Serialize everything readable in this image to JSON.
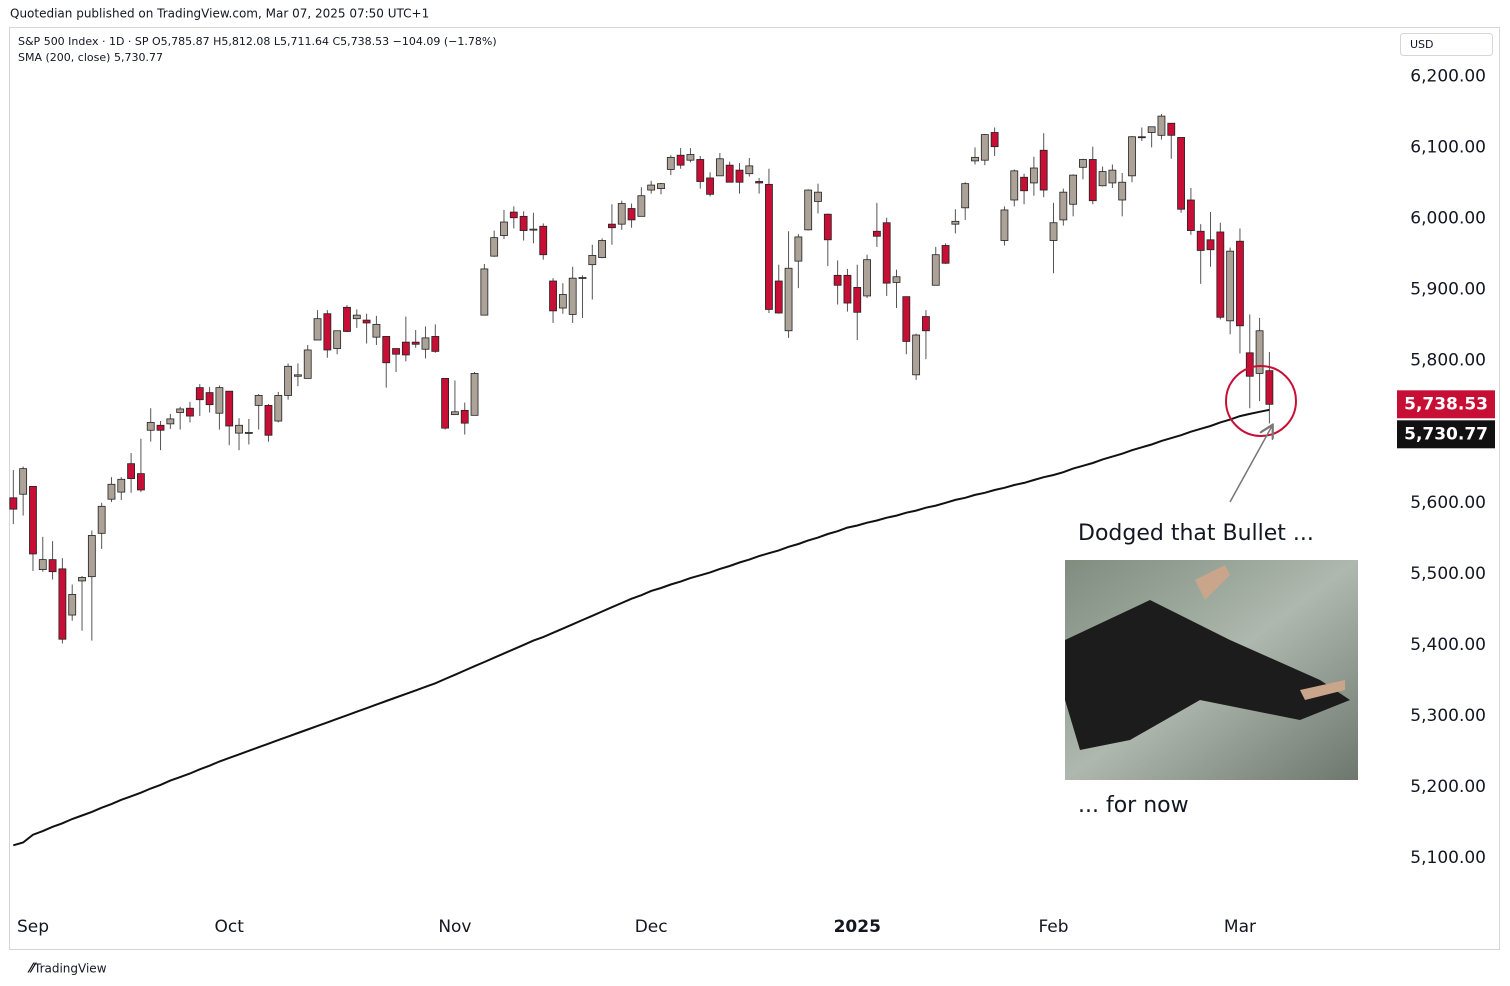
{
  "header": "Quotedian published on TradingView.com, Mar 07, 2025 07:50 UTC+1",
  "footer": "TradingView",
  "chart_data": {
    "type": "candlestick",
    "title": "S&P 500 Index · 1D · SP",
    "ohlc_line": "O5,785.87  H5,812.08  L5,711.64  C5,738.53  −104.09 (−1.78%)",
    "currency": "USD",
    "up_color": "#aca298",
    "down_color": "#c70f35",
    "open": [
      5607,
      5612,
      5623,
      5506,
      5520,
      5507,
      5442,
      5490,
      5496,
      5557,
      5605,
      5615,
      5655,
      5641,
      5702,
      5709,
      5711,
      5727,
      5733,
      5762,
      5755,
      5726,
      5757,
      5698,
      5698,
      5737,
      5737,
      5715,
      5751,
      5778,
      5775,
      5829,
      5866,
      5817,
      5875,
      5859,
      5857,
      5833,
      5834,
      5817,
      5826,
      5826,
      5816,
      5834,
      5775,
      5724,
      5730,
      5723,
      5864,
      5947,
      5976,
      6009,
      6003,
      5985,
      5989,
      5912,
      5874,
      5865,
      5917,
      5935,
      5945,
      5992,
      5992,
      6014,
      6003,
      6040,
      6042,
      6069,
      6089,
      6082,
      6083,
      6057,
      6060,
      6075,
      6068,
      6063,
      6052,
      6048,
      5912,
      5842,
      5940,
      5984,
      6024,
      6006,
      5920,
      5920,
      5903,
      5891,
      5982,
      5994,
      5910,
      5890,
      5780,
      5862,
      5906,
      5962,
      5992,
      6015,
      6081,
      6082,
      6121,
      5969,
      6026,
      6058,
      6050,
      6096,
      5969,
      5998,
      6020,
      6072,
      6083,
      6046,
      6050,
      6026,
      6060,
      6115,
      6121,
      6117,
      6134,
      6114,
      6026,
      5982,
      5970,
      5981,
      5856,
      5968,
      5811,
      5782,
      5785.87
    ],
    "high": [
      5646,
      5651,
      5623,
      5552,
      5546,
      5522,
      5485,
      5497,
      5561,
      5600,
      5636,
      5636,
      5670,
      5690,
      5733,
      5715,
      5725,
      5735,
      5742,
      5767,
      5763,
      5765,
      5757,
      5719,
      5718,
      5753,
      5739,
      5756,
      5796,
      5796,
      5822,
      5871,
      5871,
      5842,
      5878,
      5872,
      5866,
      5863,
      5834,
      5817,
      5862,
      5843,
      5848,
      5851,
      5775,
      5772,
      5741,
      5784,
      5936,
      5983,
      6012,
      6017,
      6010,
      6008,
      5993,
      5916,
      5909,
      5932,
      5920,
      5963,
      5972,
      6020,
      6025,
      6021,
      6044,
      6053,
      6050,
      6089,
      6099,
      6099,
      6088,
      6065,
      6092,
      6080,
      6078,
      6085,
      6057,
      6070,
      5935,
      5982,
      5978,
      6041,
      6049,
      6007,
      5941,
      5929,
      5935,
      5949,
      6022,
      6001,
      5928,
      5890,
      5838,
      5871,
      5960,
      5965,
      6013,
      6051,
      6100,
      6119,
      6128,
      6017,
      6069,
      6063,
      6087,
      6120,
      6022,
      6042,
      6062,
      6084,
      6101,
      6073,
      6076,
      6064,
      6116,
      6128,
      6129,
      6147,
      6134,
      6114,
      6043,
      5992,
      6009,
      5994,
      5959,
      5986,
      5865,
      5860,
      5812.08
    ],
    "low": [
      5570,
      5582,
      5504,
      5503,
      5492,
      5402,
      5434,
      5420,
      5406,
      5535,
      5601,
      5604,
      5614,
      5615,
      5686,
      5674,
      5704,
      5703,
      5713,
      5722,
      5727,
      5703,
      5681,
      5674,
      5682,
      5703,
      5686,
      5713,
      5745,
      5764,
      5775,
      5829,
      5804,
      5809,
      5840,
      5846,
      5824,
      5822,
      5762,
      5784,
      5799,
      5818,
      5803,
      5811,
      5703,
      5724,
      5696,
      5723,
      5864,
      5946,
      5971,
      5986,
      5969,
      5965,
      5942,
      5853,
      5866,
      5853,
      5860,
      5886,
      5944,
      5963,
      5984,
      5987,
      6003,
      6035,
      6034,
      6061,
      6070,
      6079,
      6042,
      6031,
      6060,
      6051,
      6035,
      6059,
      6035,
      5867,
      5866,
      5832,
      5902,
      5983,
      6007,
      5933,
      5879,
      5869,
      5829,
      5888,
      5960,
      5891,
      5874,
      5809,
      5773,
      5802,
      5906,
      5936,
      5979,
      5998,
      6076,
      6075,
      6088,
      5962,
      6017,
      6020,
      6032,
      6030,
      5923,
      5990,
      6003,
      6055,
      6020,
      6045,
      6043,
      6003,
      6051,
      6109,
      6100,
      6111,
      6084,
      6008,
      5977,
      5908,
      5932,
      5858,
      5837,
      5810,
      5733,
      5743,
      5711.64
    ],
    "close": [
      5591,
      5648,
      5528,
      5520,
      5503,
      5408,
      5471,
      5495,
      5554,
      5595,
      5626,
      5633,
      5634,
      5618,
      5713,
      5702,
      5718,
      5732,
      5722,
      5745,
      5738,
      5762,
      5708,
      5709,
      5699,
      5751,
      5695,
      5751,
      5792,
      5780,
      5815,
      5859,
      5815,
      5842,
      5841,
      5864,
      5853,
      5851,
      5797,
      5809,
      5808,
      5823,
      5832,
      5813,
      5705,
      5728,
      5712,
      5782,
      5929,
      5973,
      5995,
      6001,
      5983,
      5985,
      5949,
      5870,
      5893,
      5916,
      5917,
      5948,
      5969,
      5987,
      6021,
      5998,
      6032,
      6047,
      6049,
      6086,
      6075,
      6090,
      6052,
      6034,
      6084,
      6051,
      6051,
      6074,
      6050,
      5872,
      5867,
      5930,
      5974,
      6040,
      6037,
      5970,
      5906,
      5881,
      5868,
      5942,
      5975,
      5909,
      5918,
      5827,
      5836,
      5842,
      5949,
      5937,
      5996,
      6049,
      6086,
      6118,
      6101,
      6012,
      6067,
      6039,
      6071,
      6040,
      5994,
      6037,
      6061,
      6083,
      6025,
      6066,
      6068,
      6051,
      6115,
      6114,
      6129,
      6144,
      6117,
      6013,
      5983,
      5955,
      5956,
      5861,
      5954,
      5849,
      5778,
      5842,
      5738.53
    ],
    "close_label": "5,738.53",
    "series": [
      {
        "name": "SMA (200, close)",
        "color": "#111111",
        "value_label": "5,730.77",
        "values": [
          5118,
          5122,
          5133,
          5138,
          5144,
          5149,
          5155,
          5160,
          5165,
          5171,
          5176,
          5182,
          5187,
          5192,
          5198,
          5203,
          5209,
          5214,
          5219,
          5225,
          5230,
          5236,
          5241,
          5246,
          5251,
          5256,
          5261,
          5266,
          5271,
          5276,
          5281,
          5286,
          5291,
          5296,
          5301,
          5306,
          5311,
          5316,
          5321,
          5326,
          5331,
          5336,
          5341,
          5346,
          5352,
          5358,
          5364,
          5370,
          5376,
          5382,
          5388,
          5394,
          5400,
          5406,
          5411,
          5417,
          5423,
          5429,
          5435,
          5441,
          5447,
          5453,
          5459,
          5465,
          5470,
          5476,
          5480,
          5485,
          5489,
          5494,
          5498,
          5502,
          5507,
          5511,
          5516,
          5520,
          5525,
          5529,
          5533,
          5538,
          5542,
          5547,
          5551,
          5556,
          5560,
          5565,
          5568,
          5572,
          5575,
          5579,
          5582,
          5586,
          5589,
          5593,
          5596,
          5600,
          5604,
          5607,
          5611,
          5614,
          5618,
          5621,
          5625,
          5628,
          5632,
          5636,
          5639,
          5643,
          5648,
          5652,
          5656,
          5661,
          5665,
          5669,
          5674,
          5678,
          5682,
          5687,
          5691,
          5695,
          5700,
          5704,
          5708,
          5713,
          5717,
          5722,
          5725,
          5728,
          5730.77
        ]
      }
    ],
    "xlim": [
      -0.34,
      140.8
    ],
    "xticks": [
      {
        "value": 2,
        "label": "Sep"
      },
      {
        "value": 22,
        "label": "Oct"
      },
      {
        "value": 45,
        "label": "Nov"
      },
      {
        "value": 65,
        "label": "Dec"
      },
      {
        "value": 86,
        "label": "2025"
      },
      {
        "value": 106,
        "label": "Feb"
      },
      {
        "value": 125,
        "label": "Mar"
      }
    ],
    "ylim": [
      5027,
      6268
    ],
    "yticks": [
      {
        "value": 5100,
        "label": "5,100.00"
      },
      {
        "value": 5200,
        "label": "5,200.00"
      },
      {
        "value": 5300,
        "label": "5,300.00"
      },
      {
        "value": 5400,
        "label": "5,400.00"
      },
      {
        "value": 5500,
        "label": "5,500.00"
      },
      {
        "value": 5600,
        "label": "5,600.00"
      },
      {
        "value": 5700,
        "label": "5,700.00"
      },
      {
        "value": 5800,
        "label": "5,800.00"
      },
      {
        "value": 5900,
        "label": "5,900.00"
      },
      {
        "value": 6000,
        "label": "6,000.00"
      },
      {
        "value": 6100,
        "label": "6,100.00"
      },
      {
        "value": 6200,
        "label": "6,200.00"
      }
    ],
    "annotations": [
      "Dodged that Bullet ...",
      "... for now"
    ]
  }
}
